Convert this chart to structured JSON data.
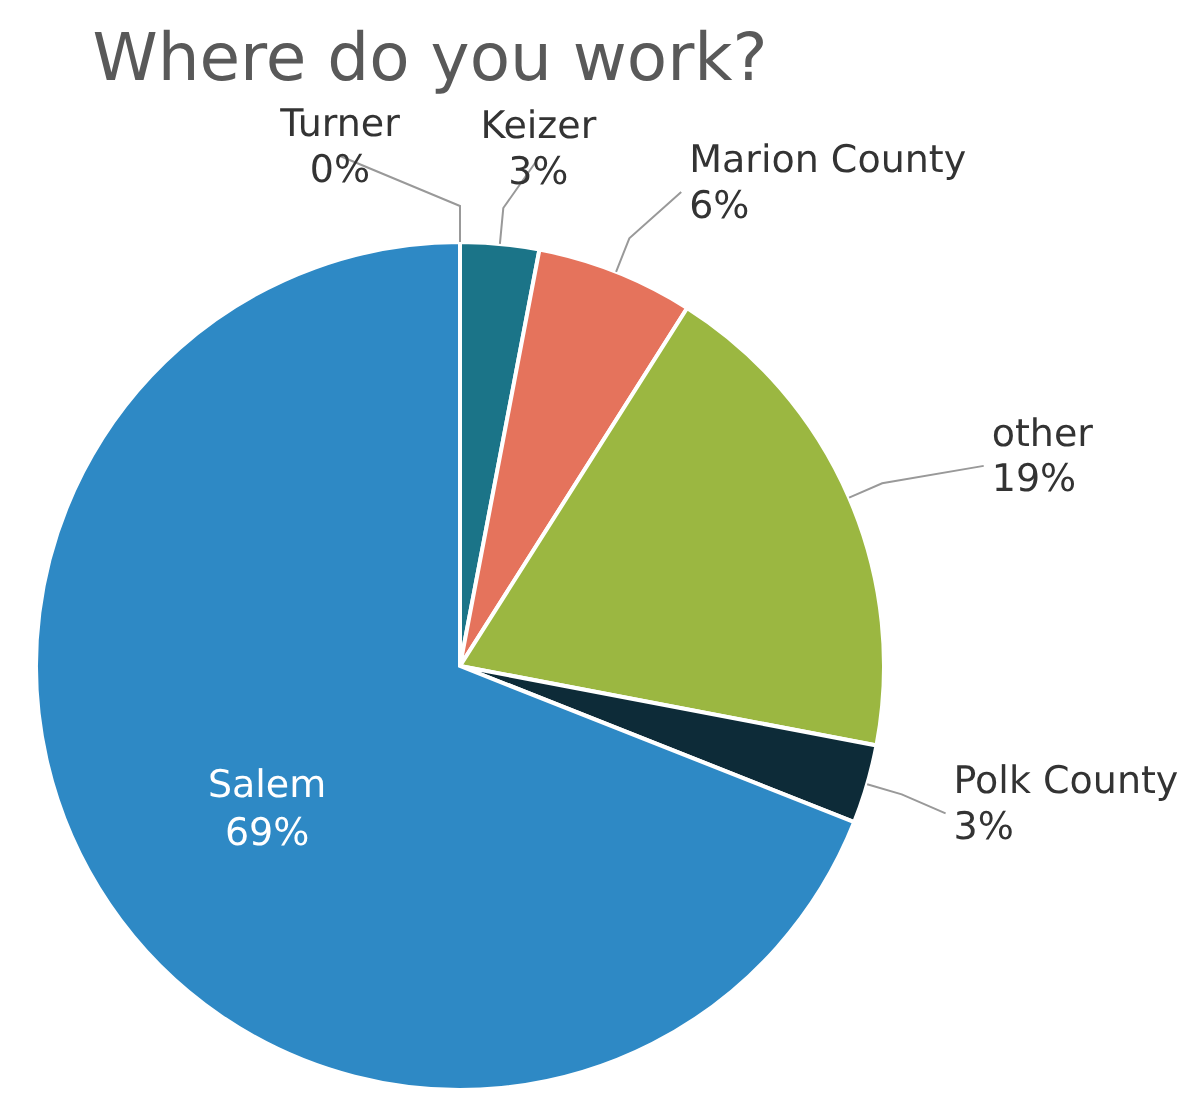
{
  "chart_data": {
    "type": "pie",
    "title": "Where do you work?",
    "categories": [
      "Turner",
      "Keizer",
      "Marion County",
      "other",
      "Polk County",
      "Salem"
    ],
    "values": [
      0,
      3,
      6,
      19,
      3,
      69
    ],
    "value_labels": [
      "0%",
      "3%",
      "6%",
      "19%",
      "3%",
      "69%"
    ],
    "colors": [
      "#e8a33d",
      "#1b7488",
      "#e5735c",
      "#9bb741",
      "#0d2b38",
      "#2e89c5"
    ]
  }
}
